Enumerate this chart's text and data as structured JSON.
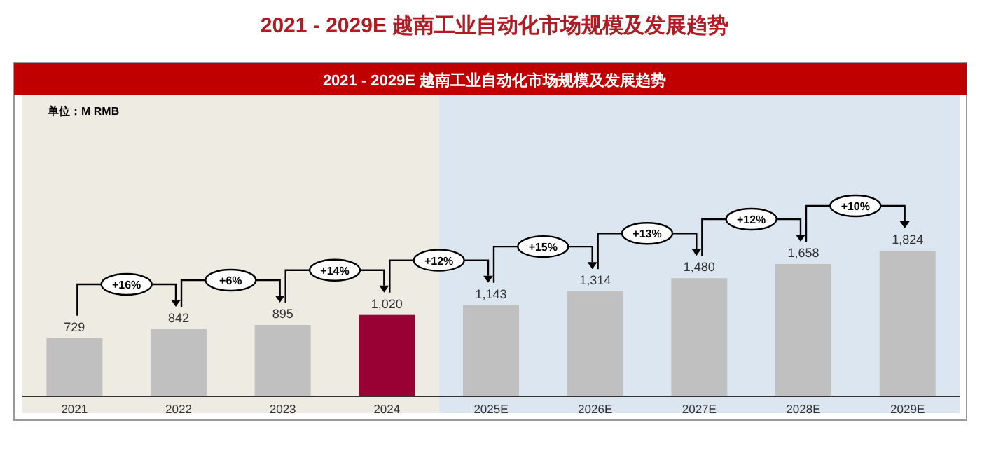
{
  "chart_data": {
    "type": "bar",
    "title": "2021 - 2029E 越南工业自动化市场规模及发展趋势",
    "subtitle": "2021 - 2029E 越南工业自动化市场规模及发展趋势",
    "categories": [
      "2021",
      "2022",
      "2023",
      "2024",
      "2025E",
      "2026E",
      "2027E",
      "2028E",
      "2029E"
    ],
    "values": [
      729,
      842,
      895,
      1020,
      1143,
      1314,
      1480,
      1658,
      1824
    ],
    "colors": [
      "#c0c0c0",
      "#c0c0c0",
      "#c0c0c0",
      "#990033",
      "#c0c0c0",
      "#c0c0c0",
      "#c0c0c0",
      "#c0c0c0",
      "#c0c0c0"
    ],
    "value_labels": [
      "729",
      "842",
      "895",
      "1,020",
      "1,143",
      "1,314",
      "1,480",
      "1,658",
      "1,824"
    ],
    "annotations": [
      "单位：M RMB",
      "+16%",
      "+6%",
      "+14%",
      "+12%",
      "+15%",
      "+13%",
      "+12%",
      "+10%"
    ],
    "bands": [
      {
        "axis": "x",
        "from": "2021",
        "to": "2024",
        "color": "#eeebe2"
      },
      {
        "axis": "x",
        "from": "2025E",
        "to": "2029E",
        "color": "#dce6f0"
      }
    ]
  }
}
